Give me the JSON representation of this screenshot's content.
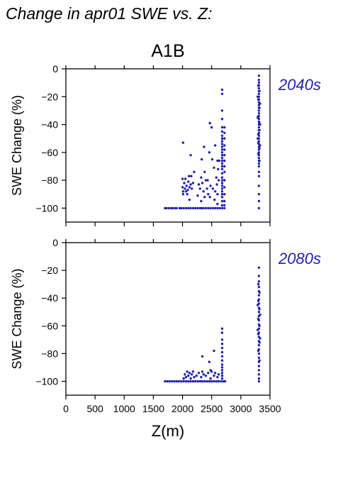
{
  "figure": {
    "title": "Change in apr01 SWE vs. Z:",
    "scenario": "A1B",
    "xlabel": "Z(m)",
    "ylabel": "SWE Change (%)",
    "point_color": "#2222aa",
    "label_color": "#2222aa"
  },
  "chart_data": [
    {
      "type": "scatter",
      "period_label": "2040s",
      "xlabel": "Z(m)",
      "ylabel": "SWE Change (%)",
      "xlim": [
        0,
        3500
      ],
      "ylim": [
        -110,
        0
      ],
      "xticks": [
        0,
        500,
        1000,
        1500,
        2000,
        2500,
        3000,
        3500
      ],
      "yticks": [
        0,
        -20,
        -40,
        -60,
        -80,
        -100
      ],
      "points": [
        [
          1700,
          -100
        ],
        [
          1720,
          -100
        ],
        [
          1760,
          -100
        ],
        [
          1800,
          -100
        ],
        [
          1830,
          -100
        ],
        [
          1870,
          -100
        ],
        [
          1900,
          -100
        ],
        [
          1950,
          -100
        ],
        [
          1980,
          -100
        ],
        [
          2020,
          -100
        ],
        [
          2060,
          -100
        ],
        [
          2100,
          -100
        ],
        [
          2140,
          -100
        ],
        [
          2180,
          -100
        ],
        [
          2220,
          -100
        ],
        [
          2260,
          -100
        ],
        [
          2300,
          -100
        ],
        [
          2330,
          -100
        ],
        [
          2360,
          -100
        ],
        [
          2400,
          -100
        ],
        [
          2440,
          -100
        ],
        [
          2480,
          -100
        ],
        [
          2520,
          -100
        ],
        [
          2560,
          -100
        ],
        [
          2600,
          -100
        ],
        [
          2640,
          -100
        ],
        [
          2680,
          -100
        ],
        [
          2720,
          -100
        ],
        [
          3310,
          -100
        ],
        [
          2010,
          -53
        ],
        [
          2140,
          -62
        ],
        [
          2200,
          -74
        ],
        [
          2330,
          -65
        ],
        [
          2370,
          -56
        ],
        [
          2430,
          -80
        ],
        [
          2460,
          -60
        ],
        [
          2470,
          -39
        ],
        [
          2500,
          -42
        ],
        [
          2510,
          -65
        ],
        [
          2540,
          -71
        ],
        [
          2560,
          -55
        ],
        [
          2590,
          -83
        ],
        [
          2320,
          -95
        ],
        [
          2380,
          -92
        ],
        [
          2260,
          -91
        ],
        [
          2120,
          -94
        ],
        [
          2550,
          -94
        ],
        [
          2600,
          -97
        ],
        [
          2470,
          -92
        ],
        [
          2000,
          -79
        ],
        [
          2000,
          -85
        ],
        [
          2010,
          -88
        ],
        [
          2010,
          -90
        ],
        [
          2030,
          -82
        ],
        [
          2040,
          -86
        ],
        [
          2050,
          -79
        ],
        [
          2060,
          -88
        ],
        [
          2070,
          -84
        ],
        [
          2080,
          -90
        ],
        [
          2090,
          -87
        ],
        [
          2100,
          -81
        ],
        [
          2110,
          -77
        ],
        [
          2120,
          -85
        ],
        [
          2140,
          -83
        ],
        [
          2150,
          -77
        ],
        [
          2160,
          -86
        ],
        [
          2180,
          -82
        ],
        [
          2280,
          -83
        ],
        [
          2300,
          -86
        ],
        [
          2320,
          -78
        ],
        [
          2340,
          -82
        ],
        [
          2360,
          -88
        ],
        [
          2380,
          -74
        ],
        [
          2400,
          -80
        ],
        [
          2420,
          -86
        ],
        [
          2440,
          -90
        ],
        [
          2480,
          -84
        ],
        [
          2520,
          -86
        ],
        [
          2560,
          -88
        ],
        [
          2580,
          -78
        ],
        [
          2600,
          -66
        ],
        [
          2610,
          -72
        ],
        [
          2620,
          -80
        ],
        [
          2630,
          -66
        ],
        [
          2600,
          -90
        ],
        [
          2680,
          -15
        ],
        [
          2680,
          -18
        ],
        [
          2680,
          -30
        ],
        [
          2680,
          -36
        ],
        [
          2680,
          -42
        ],
        [
          2680,
          -45
        ],
        [
          2680,
          -48
        ],
        [
          2680,
          -50
        ],
        [
          2680,
          -52
        ],
        [
          2680,
          -54
        ],
        [
          2680,
          -56
        ],
        [
          2680,
          -58
        ],
        [
          2680,
          -60
        ],
        [
          2680,
          -62
        ],
        [
          2680,
          -64
        ],
        [
          2680,
          -66
        ],
        [
          2680,
          -68
        ],
        [
          2680,
          -70
        ],
        [
          2680,
          -72
        ],
        [
          2680,
          -75
        ],
        [
          2680,
          -78
        ],
        [
          2680,
          -80
        ],
        [
          2680,
          -82
        ],
        [
          2680,
          -84
        ],
        [
          2680,
          -86
        ],
        [
          2680,
          -88
        ],
        [
          2680,
          -90
        ],
        [
          2680,
          -92
        ],
        [
          2680,
          -95
        ],
        [
          2680,
          -98
        ],
        [
          2720,
          -42
        ],
        [
          2720,
          -46
        ],
        [
          2720,
          -50
        ],
        [
          2720,
          -55
        ],
        [
          2720,
          -58
        ],
        [
          2720,
          -62
        ],
        [
          2720,
          -66
        ],
        [
          2720,
          -70
        ],
        [
          2720,
          -74
        ],
        [
          2720,
          -80
        ],
        [
          2720,
          -85
        ],
        [
          2720,
          -90
        ],
        [
          2720,
          -95
        ],
        [
          2720,
          -98
        ],
        [
          3310,
          -5
        ],
        [
          3310,
          -8
        ],
        [
          3310,
          -10
        ],
        [
          3310,
          -12
        ],
        [
          3310,
          -14
        ],
        [
          3310,
          -16
        ],
        [
          3310,
          -18
        ],
        [
          3310,
          -20
        ],
        [
          3310,
          -22
        ],
        [
          3310,
          -24
        ],
        [
          3310,
          -26
        ],
        [
          3310,
          -28
        ],
        [
          3310,
          -30
        ],
        [
          3310,
          -32
        ],
        [
          3310,
          -34
        ],
        [
          3310,
          -36
        ],
        [
          3310,
          -38
        ],
        [
          3310,
          -40
        ],
        [
          3310,
          -42
        ],
        [
          3310,
          -44
        ],
        [
          3310,
          -46
        ],
        [
          3310,
          -48
        ],
        [
          3310,
          -50
        ],
        [
          3310,
          -52
        ],
        [
          3310,
          -54
        ],
        [
          3310,
          -56
        ],
        [
          3310,
          -58
        ],
        [
          3310,
          -60
        ],
        [
          3310,
          -62
        ],
        [
          3310,
          -64
        ],
        [
          3310,
          -66
        ],
        [
          3310,
          -68
        ],
        [
          3310,
          -70
        ],
        [
          3310,
          -74
        ],
        [
          3310,
          -77
        ],
        [
          3310,
          -84
        ],
        [
          3310,
          -90
        ],
        [
          3310,
          -95
        ],
        [
          3300,
          -12
        ],
        [
          3300,
          -22
        ],
        [
          3300,
          -34
        ],
        [
          3300,
          -47
        ],
        [
          3300,
          -53
        ],
        [
          3300,
          -61
        ],
        [
          3320,
          -16
        ],
        [
          3320,
          -28
        ],
        [
          3320,
          -39
        ],
        [
          3320,
          -44
        ],
        [
          3320,
          -57
        ],
        [
          3320,
          -66
        ],
        [
          3290,
          -20
        ],
        [
          3290,
          -35
        ],
        [
          3290,
          -50
        ],
        [
          3330,
          -25
        ],
        [
          3330,
          -40
        ],
        [
          3330,
          -55
        ]
      ]
    },
    {
      "type": "scatter",
      "period_label": "2080s",
      "xlabel": "Z(m)",
      "ylabel": "SWE Change (%)",
      "xlim": [
        0,
        3500
      ],
      "ylim": [
        -110,
        0
      ],
      "xticks": [
        0,
        500,
        1000,
        1500,
        2000,
        2500,
        3000,
        3500
      ],
      "yticks": [
        0,
        -20,
        -40,
        -60,
        -80,
        -100
      ],
      "points": [
        [
          1700,
          -100
        ],
        [
          1740,
          -100
        ],
        [
          1780,
          -100
        ],
        [
          1820,
          -100
        ],
        [
          1860,
          -100
        ],
        [
          1900,
          -100
        ],
        [
          1940,
          -100
        ],
        [
          1980,
          -100
        ],
        [
          2020,
          -100
        ],
        [
          2060,
          -100
        ],
        [
          2100,
          -100
        ],
        [
          2140,
          -100
        ],
        [
          2180,
          -100
        ],
        [
          2220,
          -100
        ],
        [
          2260,
          -100
        ],
        [
          2300,
          -100
        ],
        [
          2340,
          -100
        ],
        [
          2380,
          -100
        ],
        [
          2420,
          -100
        ],
        [
          2460,
          -100
        ],
        [
          2500,
          -100
        ],
        [
          2540,
          -100
        ],
        [
          2580,
          -100
        ],
        [
          2620,
          -100
        ],
        [
          2660,
          -100
        ],
        [
          2700,
          -100
        ],
        [
          2730,
          -100
        ],
        [
          3310,
          -100
        ],
        [
          2020,
          -98
        ],
        [
          2040,
          -95
        ],
        [
          2060,
          -97
        ],
        [
          2080,
          -93
        ],
        [
          2100,
          -96
        ],
        [
          2120,
          -94
        ],
        [
          2140,
          -98
        ],
        [
          2160,
          -95
        ],
        [
          2180,
          -93
        ],
        [
          2200,
          -97
        ],
        [
          2240,
          -96
        ],
        [
          2280,
          -94
        ],
        [
          2320,
          -97
        ],
        [
          2340,
          -93
        ],
        [
          2360,
          -95
        ],
        [
          2400,
          -96
        ],
        [
          2440,
          -94
        ],
        [
          2480,
          -98
        ],
        [
          2500,
          -93
        ],
        [
          2540,
          -96
        ],
        [
          2560,
          -94
        ],
        [
          2600,
          -97
        ],
        [
          2620,
          -95
        ],
        [
          2340,
          -82
        ],
        [
          2460,
          -86
        ],
        [
          2540,
          -78
        ],
        [
          2480,
          -92
        ],
        [
          2680,
          -62
        ],
        [
          2680,
          -65
        ],
        [
          2680,
          -70
        ],
        [
          2680,
          -73
        ],
        [
          2680,
          -76
        ],
        [
          2680,
          -79
        ],
        [
          2680,
          -82
        ],
        [
          2680,
          -85
        ],
        [
          2680,
          -88
        ],
        [
          2680,
          -90
        ],
        [
          2680,
          -92
        ],
        [
          2680,
          -94
        ],
        [
          2680,
          -96
        ],
        [
          2680,
          -98
        ],
        [
          3310,
          -18
        ],
        [
          3310,
          -24
        ],
        [
          3310,
          -28
        ],
        [
          3310,
          -32
        ],
        [
          3310,
          -35
        ],
        [
          3310,
          -38
        ],
        [
          3310,
          -41
        ],
        [
          3310,
          -44
        ],
        [
          3310,
          -47
        ],
        [
          3310,
          -50
        ],
        [
          3310,
          -53
        ],
        [
          3310,
          -56
        ],
        [
          3310,
          -59
        ],
        [
          3310,
          -62
        ],
        [
          3310,
          -65
        ],
        [
          3310,
          -68
        ],
        [
          3310,
          -71
        ],
        [
          3310,
          -74
        ],
        [
          3310,
          -77
        ],
        [
          3310,
          -80
        ],
        [
          3310,
          -83
        ],
        [
          3310,
          -86
        ],
        [
          3310,
          -89
        ],
        [
          3310,
          -92
        ],
        [
          3310,
          -95
        ],
        [
          3310,
          -98
        ],
        [
          3300,
          -30
        ],
        [
          3300,
          -42
        ],
        [
          3300,
          -55
        ],
        [
          3300,
          -66
        ],
        [
          3300,
          -78
        ],
        [
          3320,
          -36
        ],
        [
          3320,
          -48
        ],
        [
          3320,
          -60
        ],
        [
          3320,
          -72
        ],
        [
          3320,
          -85
        ],
        [
          3290,
          -45
        ],
        [
          3290,
          -63
        ],
        [
          3330,
          -52
        ],
        [
          3330,
          -69
        ]
      ]
    }
  ]
}
